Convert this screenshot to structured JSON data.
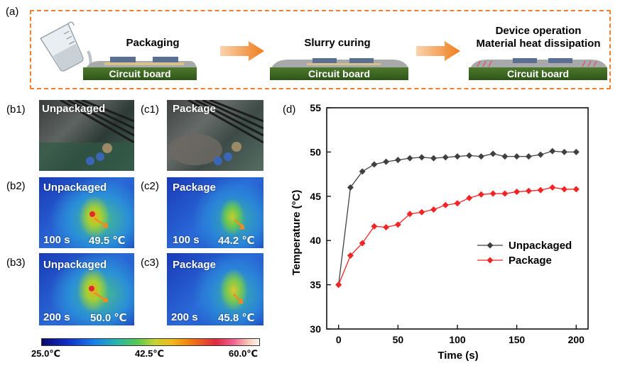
{
  "panel_a": {
    "label": "(a)",
    "steps": [
      {
        "title_lines": [
          "Packaging"
        ],
        "board": "Circuit board"
      },
      {
        "title_lines": [
          "Slurry curing"
        ],
        "board": "Circuit board"
      },
      {
        "title_lines": [
          "Device operation",
          "Material heat dissipation"
        ],
        "board": "Circuit board"
      }
    ],
    "colors": {
      "dashed_border": "#ed7d31",
      "arrow": "#ef7c1b",
      "board": "#3c6a22"
    }
  },
  "panel_b": {
    "photo": {
      "label": "(b1)",
      "caption": "Unpackaged"
    },
    "thermal": [
      {
        "label": "(b2)",
        "caption": "Unpackaged",
        "time": "100 s",
        "temp": "49.5 ℃"
      },
      {
        "label": "(b3)",
        "caption": "Unpackaged",
        "time": "200 s",
        "temp": "50.0 ℃"
      }
    ]
  },
  "panel_c": {
    "photo": {
      "label": "(c1)",
      "caption": "Package"
    },
    "thermal": [
      {
        "label": "(c2)",
        "caption": "Package",
        "time": "100 s",
        "temp": "44.2 ℃"
      },
      {
        "label": "(c3)",
        "caption": "Package",
        "time": "200 s",
        "temp": "45.8 ℃"
      }
    ]
  },
  "colorbar": {
    "min": "25.0℃",
    "mid": "42.5℃",
    "max": "60.0℃"
  },
  "panel_d": {
    "label": "(d)"
  },
  "chart_data": {
    "type": "line",
    "xlabel": "Time (s)",
    "ylabel": "Temperature (°C)",
    "xlim": [
      -10,
      210
    ],
    "ylim": [
      30,
      55
    ],
    "xticks": [
      0,
      50,
      100,
      150,
      200
    ],
    "yticks": [
      30,
      35,
      40,
      45,
      50,
      55
    ],
    "grid": false,
    "legend_position": "center-right",
    "series": [
      {
        "name": "Unpackaged",
        "color": "#404040",
        "marker": "diamond",
        "x": [
          0,
          10,
          20,
          30,
          40,
          50,
          60,
          70,
          80,
          90,
          100,
          110,
          120,
          130,
          140,
          150,
          160,
          170,
          180,
          190,
          200
        ],
        "y": [
          35.0,
          46.0,
          47.8,
          48.6,
          48.9,
          49.1,
          49.3,
          49.4,
          49.3,
          49.4,
          49.5,
          49.6,
          49.5,
          49.8,
          49.5,
          49.5,
          49.5,
          49.7,
          50.1,
          50.0,
          50.0
        ]
      },
      {
        "name": "Package",
        "color": "#f22525",
        "marker": "diamond",
        "x": [
          0,
          10,
          20,
          30,
          40,
          50,
          60,
          70,
          80,
          90,
          100,
          110,
          120,
          130,
          140,
          150,
          160,
          170,
          180,
          190,
          200
        ],
        "y": [
          35.0,
          38.3,
          39.7,
          41.6,
          41.5,
          41.8,
          43.0,
          43.2,
          43.5,
          44.0,
          44.2,
          44.8,
          45.2,
          45.3,
          45.3,
          45.5,
          45.6,
          45.7,
          46.0,
          45.8,
          45.8
        ]
      }
    ]
  }
}
